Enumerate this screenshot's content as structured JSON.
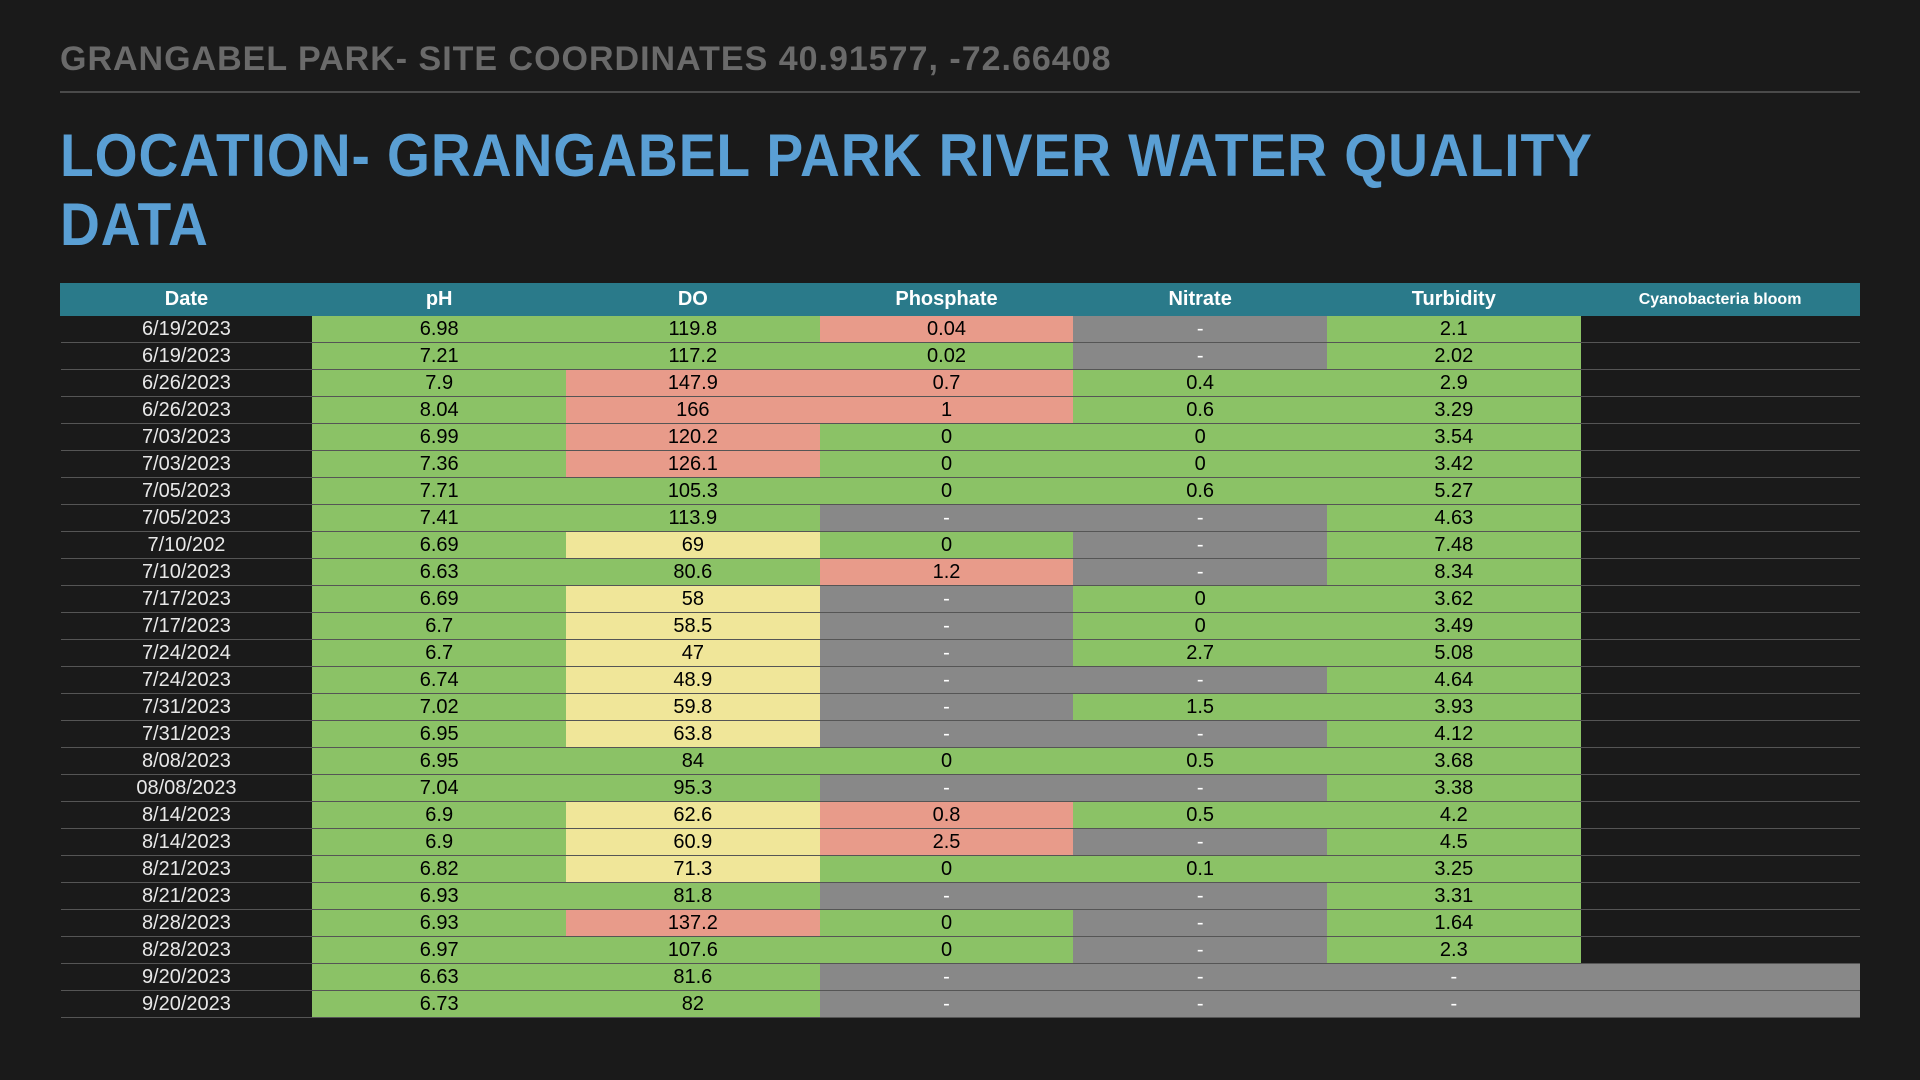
{
  "subheader": "GRANGABEL PARK- SITE COORDINATES 40.91577, -72.66408",
  "title": "LOCATION- GRANGABEL PARK RIVER WATER QUALITY DATA",
  "colors": {
    "background": "#1a1a1a",
    "subheader_text": "#6a6a6a",
    "divider": "#4a4a4a",
    "title_text": "#5a9fd4",
    "header_bg": "#2a7a8a",
    "header_text": "#ffffff",
    "green": "#8bc266",
    "yellow": "#f0e699",
    "red": "#e89b8a",
    "gray": "#888888",
    "row_border": "#555555",
    "date_text": "#e8e8e8"
  },
  "typography": {
    "subheader_fontsize": 34,
    "title_fontsize": 60,
    "header_fontsize": 20,
    "cyano_header_fontsize": 16,
    "cell_fontsize": 20
  },
  "table": {
    "columns": [
      "Date",
      "pH",
      "DO",
      "Phosphate",
      "Nitrate",
      "Turbidity",
      "Cyanobacteria bloom"
    ],
    "rows": [
      {
        "date": "6/19/2023",
        "ph": {
          "v": "6.98",
          "c": "green"
        },
        "do": {
          "v": "119.8",
          "c": "green"
        },
        "phos": {
          "v": "0.04",
          "c": "red"
        },
        "nit": {
          "v": "-",
          "c": "gray"
        },
        "turb": {
          "v": "2.1",
          "c": "green"
        },
        "cyano": {
          "v": "",
          "c": "blank"
        }
      },
      {
        "date": "6/19/2023",
        "ph": {
          "v": "7.21",
          "c": "green"
        },
        "do": {
          "v": "117.2",
          "c": "green"
        },
        "phos": {
          "v": "0.02",
          "c": "green"
        },
        "nit": {
          "v": "-",
          "c": "gray"
        },
        "turb": {
          "v": "2.02",
          "c": "green"
        },
        "cyano": {
          "v": "",
          "c": "blank"
        }
      },
      {
        "date": "6/26/2023",
        "ph": {
          "v": "7.9",
          "c": "green"
        },
        "do": {
          "v": "147.9",
          "c": "red"
        },
        "phos": {
          "v": "0.7",
          "c": "red"
        },
        "nit": {
          "v": "0.4",
          "c": "green"
        },
        "turb": {
          "v": "2.9",
          "c": "green"
        },
        "cyano": {
          "v": "",
          "c": "blank"
        }
      },
      {
        "date": "6/26/2023",
        "ph": {
          "v": "8.04",
          "c": "green"
        },
        "do": {
          "v": "166",
          "c": "red"
        },
        "phos": {
          "v": "1",
          "c": "red"
        },
        "nit": {
          "v": "0.6",
          "c": "green"
        },
        "turb": {
          "v": "3.29",
          "c": "green"
        },
        "cyano": {
          "v": "",
          "c": "blank"
        }
      },
      {
        "date": "7/03/2023",
        "ph": {
          "v": "6.99",
          "c": "green"
        },
        "do": {
          "v": "120.2",
          "c": "red"
        },
        "phos": {
          "v": "0",
          "c": "green"
        },
        "nit": {
          "v": "0",
          "c": "green"
        },
        "turb": {
          "v": "3.54",
          "c": "green"
        },
        "cyano": {
          "v": "",
          "c": "blank"
        }
      },
      {
        "date": "7/03/2023",
        "ph": {
          "v": "7.36",
          "c": "green"
        },
        "do": {
          "v": "126.1",
          "c": "red"
        },
        "phos": {
          "v": "0",
          "c": "green"
        },
        "nit": {
          "v": "0",
          "c": "green"
        },
        "turb": {
          "v": "3.42",
          "c": "green"
        },
        "cyano": {
          "v": "",
          "c": "blank"
        }
      },
      {
        "date": "7/05/2023",
        "ph": {
          "v": "7.71",
          "c": "green"
        },
        "do": {
          "v": "105.3",
          "c": "green"
        },
        "phos": {
          "v": "0",
          "c": "green"
        },
        "nit": {
          "v": "0.6",
          "c": "green"
        },
        "turb": {
          "v": "5.27",
          "c": "green"
        },
        "cyano": {
          "v": "",
          "c": "blank"
        }
      },
      {
        "date": "7/05/2023",
        "ph": {
          "v": "7.41",
          "c": "green"
        },
        "do": {
          "v": "113.9",
          "c": "green"
        },
        "phos": {
          "v": "-",
          "c": "gray"
        },
        "nit": {
          "v": "-",
          "c": "gray"
        },
        "turb": {
          "v": "4.63",
          "c": "green"
        },
        "cyano": {
          "v": "",
          "c": "blank"
        }
      },
      {
        "date": "7/10/202",
        "ph": {
          "v": "6.69",
          "c": "green"
        },
        "do": {
          "v": "69",
          "c": "yellow"
        },
        "phos": {
          "v": "0",
          "c": "green"
        },
        "nit": {
          "v": "-",
          "c": "gray"
        },
        "turb": {
          "v": "7.48",
          "c": "green"
        },
        "cyano": {
          "v": "",
          "c": "blank"
        }
      },
      {
        "date": "7/10/2023",
        "ph": {
          "v": "6.63",
          "c": "green"
        },
        "do": {
          "v": "80.6",
          "c": "green"
        },
        "phos": {
          "v": "1.2",
          "c": "red"
        },
        "nit": {
          "v": "-",
          "c": "gray"
        },
        "turb": {
          "v": "8.34",
          "c": "green"
        },
        "cyano": {
          "v": "",
          "c": "blank"
        }
      },
      {
        "date": "7/17/2023",
        "ph": {
          "v": "6.69",
          "c": "green"
        },
        "do": {
          "v": "58",
          "c": "yellow"
        },
        "phos": {
          "v": "-",
          "c": "gray"
        },
        "nit": {
          "v": "0",
          "c": "green"
        },
        "turb": {
          "v": "3.62",
          "c": "green"
        },
        "cyano": {
          "v": "",
          "c": "blank"
        }
      },
      {
        "date": "7/17/2023",
        "ph": {
          "v": "6.7",
          "c": "green"
        },
        "do": {
          "v": "58.5",
          "c": "yellow"
        },
        "phos": {
          "v": "-",
          "c": "gray"
        },
        "nit": {
          "v": "0",
          "c": "green"
        },
        "turb": {
          "v": "3.49",
          "c": "green"
        },
        "cyano": {
          "v": "",
          "c": "blank"
        }
      },
      {
        "date": "7/24/2024",
        "ph": {
          "v": "6.7",
          "c": "green"
        },
        "do": {
          "v": "47",
          "c": "yellow"
        },
        "phos": {
          "v": "-",
          "c": "gray"
        },
        "nit": {
          "v": "2.7",
          "c": "green"
        },
        "turb": {
          "v": "5.08",
          "c": "green"
        },
        "cyano": {
          "v": "",
          "c": "blank"
        }
      },
      {
        "date": "7/24/2023",
        "ph": {
          "v": "6.74",
          "c": "green"
        },
        "do": {
          "v": "48.9",
          "c": "yellow"
        },
        "phos": {
          "v": "-",
          "c": "gray"
        },
        "nit": {
          "v": "-",
          "c": "gray"
        },
        "turb": {
          "v": "4.64",
          "c": "green"
        },
        "cyano": {
          "v": "",
          "c": "blank"
        }
      },
      {
        "date": "7/31/2023",
        "ph": {
          "v": "7.02",
          "c": "green"
        },
        "do": {
          "v": "59.8",
          "c": "yellow"
        },
        "phos": {
          "v": "-",
          "c": "gray"
        },
        "nit": {
          "v": "1.5",
          "c": "green"
        },
        "turb": {
          "v": "3.93",
          "c": "green"
        },
        "cyano": {
          "v": "",
          "c": "blank"
        }
      },
      {
        "date": "7/31/2023",
        "ph": {
          "v": "6.95",
          "c": "green"
        },
        "do": {
          "v": "63.8",
          "c": "yellow"
        },
        "phos": {
          "v": "-",
          "c": "gray"
        },
        "nit": {
          "v": "-",
          "c": "gray"
        },
        "turb": {
          "v": "4.12",
          "c": "green"
        },
        "cyano": {
          "v": "",
          "c": "blank"
        }
      },
      {
        "date": "8/08/2023",
        "ph": {
          "v": "6.95",
          "c": "green"
        },
        "do": {
          "v": "84",
          "c": "green"
        },
        "phos": {
          "v": "0",
          "c": "green"
        },
        "nit": {
          "v": "0.5",
          "c": "green"
        },
        "turb": {
          "v": "3.68",
          "c": "green"
        },
        "cyano": {
          "v": "",
          "c": "blank"
        }
      },
      {
        "date": "08/08/2023",
        "ph": {
          "v": "7.04",
          "c": "green"
        },
        "do": {
          "v": "95.3",
          "c": "green"
        },
        "phos": {
          "v": "-",
          "c": "gray"
        },
        "nit": {
          "v": "-",
          "c": "gray"
        },
        "turb": {
          "v": "3.38",
          "c": "green"
        },
        "cyano": {
          "v": "",
          "c": "blank"
        }
      },
      {
        "date": "8/14/2023",
        "ph": {
          "v": "6.9",
          "c": "green"
        },
        "do": {
          "v": "62.6",
          "c": "yellow"
        },
        "phos": {
          "v": "0.8",
          "c": "red"
        },
        "nit": {
          "v": "0.5",
          "c": "green"
        },
        "turb": {
          "v": "4.2",
          "c": "green"
        },
        "cyano": {
          "v": "",
          "c": "blank"
        }
      },
      {
        "date": "8/14/2023",
        "ph": {
          "v": "6.9",
          "c": "green"
        },
        "do": {
          "v": "60.9",
          "c": "yellow"
        },
        "phos": {
          "v": "2.5",
          "c": "red"
        },
        "nit": {
          "v": "-",
          "c": "gray"
        },
        "turb": {
          "v": "4.5",
          "c": "green"
        },
        "cyano": {
          "v": "",
          "c": "blank"
        }
      },
      {
        "date": "8/21/2023",
        "ph": {
          "v": "6.82",
          "c": "green"
        },
        "do": {
          "v": "71.3",
          "c": "yellow"
        },
        "phos": {
          "v": "0",
          "c": "green"
        },
        "nit": {
          "v": "0.1",
          "c": "green"
        },
        "turb": {
          "v": "3.25",
          "c": "green"
        },
        "cyano": {
          "v": "",
          "c": "blank"
        }
      },
      {
        "date": "8/21/2023",
        "ph": {
          "v": "6.93",
          "c": "green"
        },
        "do": {
          "v": "81.8",
          "c": "green"
        },
        "phos": {
          "v": "-",
          "c": "gray"
        },
        "nit": {
          "v": "-",
          "c": "gray"
        },
        "turb": {
          "v": "3.31",
          "c": "green"
        },
        "cyano": {
          "v": "",
          "c": "blank"
        }
      },
      {
        "date": "8/28/2023",
        "ph": {
          "v": "6.93",
          "c": "green"
        },
        "do": {
          "v": "137.2",
          "c": "red"
        },
        "phos": {
          "v": "0",
          "c": "green"
        },
        "nit": {
          "v": "-",
          "c": "gray"
        },
        "turb": {
          "v": "1.64",
          "c": "green"
        },
        "cyano": {
          "v": "",
          "c": "blank"
        }
      },
      {
        "date": "8/28/2023",
        "ph": {
          "v": "6.97",
          "c": "green"
        },
        "do": {
          "v": "107.6",
          "c": "green"
        },
        "phos": {
          "v": "0",
          "c": "green"
        },
        "nit": {
          "v": "-",
          "c": "gray"
        },
        "turb": {
          "v": "2.3",
          "c": "green"
        },
        "cyano": {
          "v": "",
          "c": "blank"
        }
      },
      {
        "date": "9/20/2023",
        "ph": {
          "v": "6.63",
          "c": "green"
        },
        "do": {
          "v": "81.6",
          "c": "green"
        },
        "phos": {
          "v": "-",
          "c": "gray"
        },
        "nit": {
          "v": "-",
          "c": "gray"
        },
        "turb": {
          "v": "-",
          "c": "gray"
        },
        "cyano": {
          "v": "",
          "c": "gray"
        }
      },
      {
        "date": "9/20/2023",
        "ph": {
          "v": "6.73",
          "c": "green"
        },
        "do": {
          "v": "82",
          "c": "green"
        },
        "phos": {
          "v": "-",
          "c": "gray"
        },
        "nit": {
          "v": "-",
          "c": "gray"
        },
        "turb": {
          "v": "-",
          "c": "gray"
        },
        "cyano": {
          "v": "",
          "c": "gray"
        }
      }
    ]
  }
}
